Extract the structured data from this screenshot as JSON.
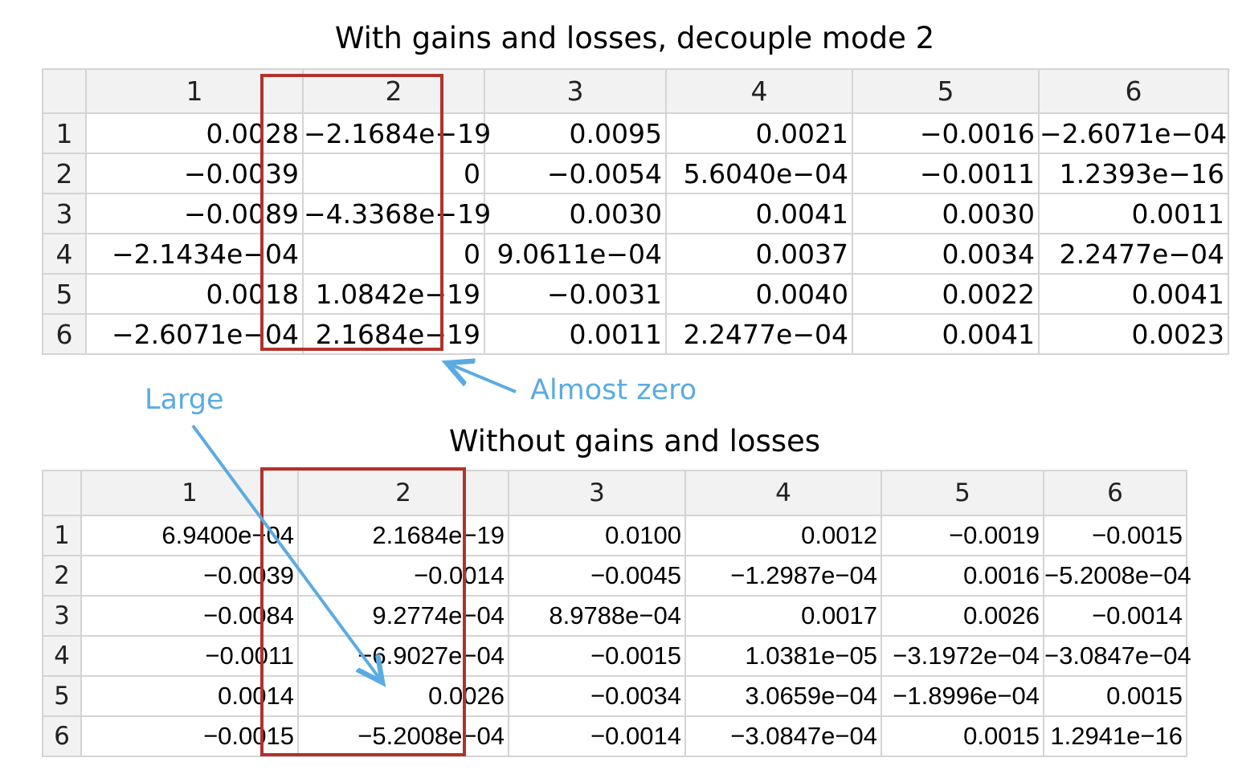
{
  "colors": {
    "highlight": "#b0332b",
    "annotation": "#5aabe2",
    "header_bg": "#f2f2f2",
    "grid_line": "#d4d4d4"
  },
  "table1": {
    "title": "With gains and losses, decouple mode 2",
    "col_headers": [
      "1",
      "2",
      "3",
      "4",
      "5",
      "6"
    ],
    "rows": [
      {
        "label": "1",
        "cells": [
          "0.0028",
          "−2.1684e−19",
          "0.0095",
          "0.0021",
          "−0.0016",
          "−2.6071e−04"
        ]
      },
      {
        "label": "2",
        "cells": [
          "−0.0039",
          "0",
          "−0.0054",
          "5.6040e−04",
          "−0.0011",
          "1.2393e−16"
        ]
      },
      {
        "label": "3",
        "cells": [
          "−0.0089",
          "−4.3368e−19",
          "0.0030",
          "0.0041",
          "0.0030",
          "0.0011"
        ]
      },
      {
        "label": "4",
        "cells": [
          "−2.1434e−04",
          "0",
          "9.0611e−04",
          "0.0037",
          "0.0034",
          "2.2477e−04"
        ]
      },
      {
        "label": "5",
        "cells": [
          "0.0018",
          "1.0842e−19",
          "−0.0031",
          "0.0040",
          "0.0022",
          "0.0041"
        ]
      },
      {
        "label": "6",
        "cells": [
          "−2.6071e−04",
          "2.1684e−19",
          "0.0011",
          "2.2477e−04",
          "0.0041",
          "0.0023"
        ]
      }
    ]
  },
  "table2": {
    "title": "Without gains and losses",
    "col_headers": [
      "1",
      "2",
      "3",
      "4",
      "5",
      "6"
    ],
    "rows": [
      {
        "label": "1",
        "cells": [
          "6.9400e−04",
          "2.1684e−19",
          "0.0100",
          "0.0012",
          "−0.0019",
          "−0.0015"
        ]
      },
      {
        "label": "2",
        "cells": [
          "−0.0039",
          "−0.0014",
          "−0.0045",
          "−1.2987e−04",
          "0.0016",
          "−5.2008e−04"
        ]
      },
      {
        "label": "3",
        "cells": [
          "−0.0084",
          "9.2774e−04",
          "8.9788e−04",
          "0.0017",
          "0.0026",
          "−0.0014"
        ]
      },
      {
        "label": "4",
        "cells": [
          "−0.0011",
          "−6.9027e−04",
          "−0.0015",
          "1.0381e−05",
          "−3.1972e−04",
          "−3.0847e−04"
        ]
      },
      {
        "label": "5",
        "cells": [
          "0.0014",
          "0.0026",
          "−0.0034",
          "3.0659e−04",
          "−1.8996e−04",
          "0.0015"
        ]
      },
      {
        "label": "6",
        "cells": [
          "−0.0015",
          "−5.2008e−04",
          "−0.0014",
          "−3.0847e−04",
          "0.0015",
          "1.2941e−16"
        ]
      }
    ]
  },
  "annotations": {
    "almost_zero": "Almost zero",
    "large": "Large"
  }
}
